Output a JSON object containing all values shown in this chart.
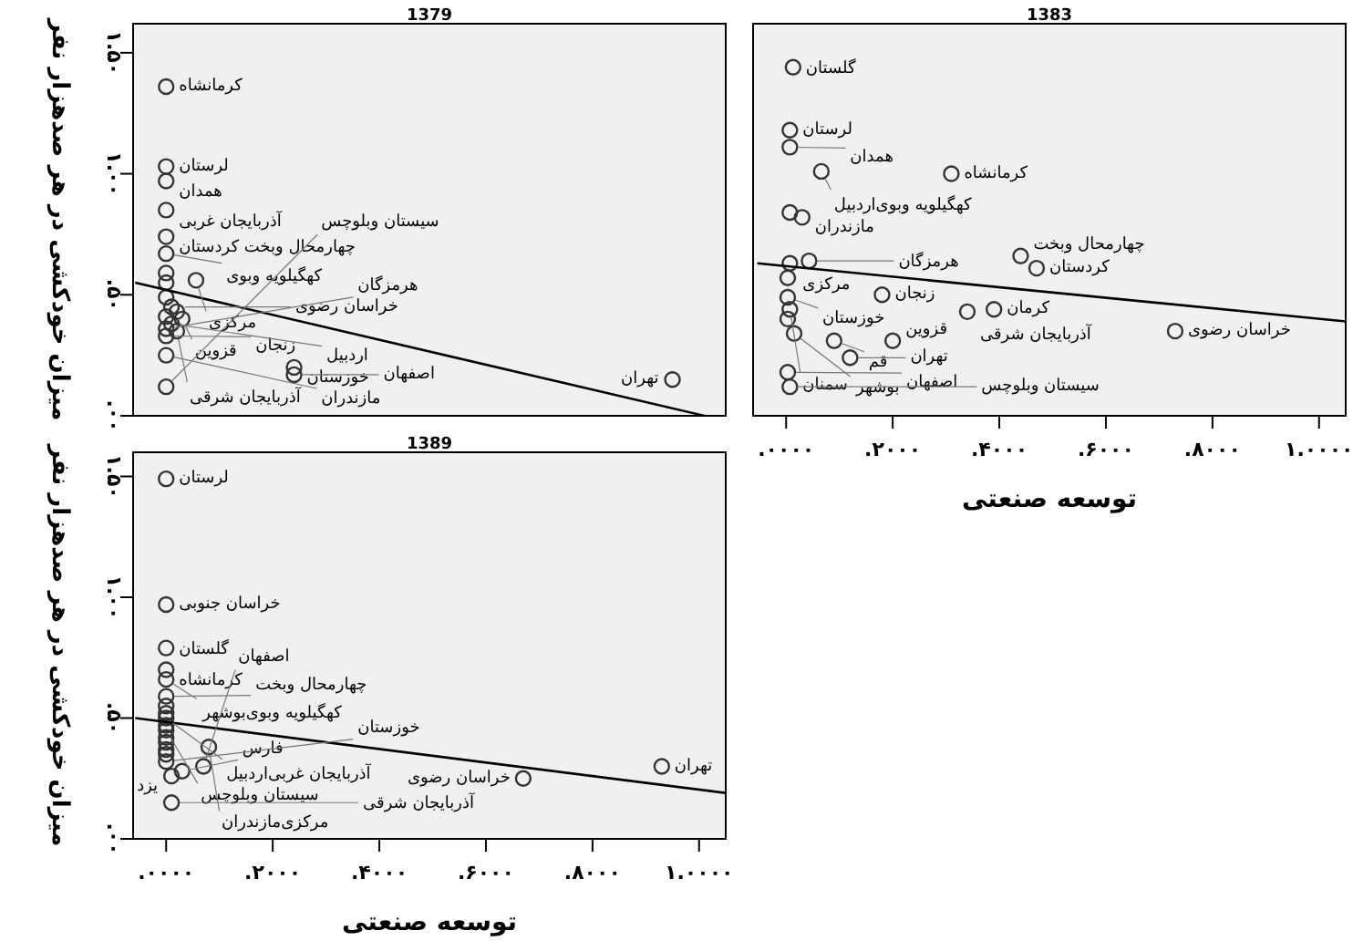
{
  "chart_data": [
    {
      "type": "scatter",
      "title": "1379",
      "ylabel": "میزان خودکشی در هر صدهزار نفر",
      "tick_labels": "y",
      "xlim": [
        -0.062,
        1.05
      ],
      "ylim": [
        0,
        1.62
      ],
      "yticks": [
        {
          "value": 0,
          "label": ".۰۰"
        },
        {
          "value": 0.5,
          "label": ".۵۰"
        },
        {
          "value": 1,
          "label": "۱.۰۰"
        },
        {
          "value": 1.5,
          "label": "۱.۵۰"
        }
      ],
      "series": [
        {
          "type": "scatter",
          "marker": "circle",
          "color": "#333333",
          "x": [
            0,
            0,
            0,
            0,
            0,
            0,
            0,
            0,
            0.056,
            0,
            0.01,
            0.02,
            0,
            0.03,
            0.01,
            0,
            0.02,
            0,
            0,
            0.24,
            0.24,
            0,
            0.95
          ],
          "values": [
            1.36,
            1.03,
            0.97,
            0.85,
            0.74,
            0.67,
            0.59,
            0.55,
            0.56,
            0.49,
            0.45,
            0.43,
            0.41,
            0.4,
            0.38,
            0.36,
            0.35,
            0.33,
            0.25,
            0.2,
            0.17,
            0.12,
            0.15
          ]
        },
        {
          "type": "line",
          "color": "#000000",
          "x": [
            -0.058,
            1.01
          ],
          "values": [
            0.55,
            0
          ]
        }
      ],
      "annotations": [
        {
          "text": "کرمانشاه",
          "x": 0,
          "y": 1.36
        },
        {
          "text": "لرستان",
          "x": 0,
          "y": 1.03
        },
        {
          "text": "همدان",
          "x": 0,
          "y": 0.97
        },
        {
          "text": "آذربایجان غربی",
          "x": 0,
          "y": 0.85
        },
        {
          "text": "چهارمحال وبخت کردستان",
          "x": 0,
          "y": 0.74
        },
        {
          "text": "کهگیلویه وبوی",
          "x": 0,
          "y": 0.67
        },
        {
          "text": "مرکزی",
          "x": 0.056,
          "y": 0.56
        },
        {
          "text": "خراسان رضوی",
          "x": 0.02,
          "y": 0.45
        },
        {
          "text": "قزوین",
          "x": 0.03,
          "y": 0.4
        },
        {
          "text": "آذربایجان شرقی",
          "x": 0.02,
          "y": 0.35
        },
        {
          "text": "زنجان",
          "x": 0,
          "y": 0.33
        },
        {
          "text": "اردبیل",
          "x": 0.01,
          "y": 0.38
        },
        {
          "text": "خوزستان",
          "x": 0.24,
          "y": 0.2
        },
        {
          "text": "هرمزگان",
          "x": 0,
          "y": 0.36
        },
        {
          "text": "مازندران",
          "x": 0,
          "y": 0.25
        },
        {
          "text": "اصفهان",
          "x": 0.24,
          "y": 0.17
        },
        {
          "text": "سیستان وبلوچس",
          "x": 0,
          "y": 0.12
        },
        {
          "text": "تهران",
          "x": 0.95,
          "y": 0.15
        }
      ]
    },
    {
      "type": "scatter",
      "title": "1383",
      "xlabel": "توسعه صنعتی",
      "tick_labels": "x",
      "xlim": [
        -0.062,
        1.05
      ],
      "ylim": [
        0,
        1.62
      ],
      "xticks": [
        {
          "value": 0,
          "label": ".۰۰۰۰"
        },
        {
          "value": 0.2,
          "label": ".۲۰۰۰"
        },
        {
          "value": 0.4,
          "label": ".۴۰۰۰"
        },
        {
          "value": 0.6,
          "label": ".۶۰۰۰"
        },
        {
          "value": 0.8,
          "label": ".۸۰۰۰"
        },
        {
          "value": 1,
          "label": "۱.۰۰۰۰"
        }
      ],
      "series": [
        {
          "type": "scatter",
          "marker": "circle",
          "color": "#333333",
          "x": [
            0.013,
            0.007,
            0.007,
            0.066,
            0.31,
            0.007,
            0.03,
            0.007,
            0.043,
            0.003,
            0.003,
            0.18,
            0.44,
            0.47,
            0.34,
            0.39,
            0.73,
            0.007,
            0.003,
            0.015,
            0.09,
            0.12,
            0.2,
            0.003,
            0.007
          ],
          "values": [
            1.44,
            1.18,
            1.11,
            1.01,
            1,
            0.84,
            0.82,
            0.63,
            0.64,
            0.57,
            0.49,
            0.5,
            0.66,
            0.61,
            0.43,
            0.44,
            0.35,
            0.44,
            0.4,
            0.34,
            0.31,
            0.24,
            0.31,
            0.18,
            0.12
          ]
        },
        {
          "type": "line",
          "color": "#000000",
          "x": [
            -0.054,
            1.05
          ],
          "values": [
            0.63,
            0.39
          ]
        }
      ],
      "annotations": [
        {
          "text": "گلستان",
          "x": 0.013,
          "y": 1.44
        },
        {
          "text": "لرستان",
          "x": 0.007,
          "y": 1.18
        },
        {
          "text": "همدان",
          "x": 0.007,
          "y": 1.11
        },
        {
          "text": "کهگیلویه وبوی‌اردبیل",
          "x": 0.066,
          "y": 1.01
        },
        {
          "text": "کرمانشاه",
          "x": 0.31,
          "y": 1
        },
        {
          "text": "مازندران",
          "x": 0.03,
          "y": 0.82
        },
        {
          "text": "مرکزی",
          "x": 0.007,
          "y": 0.63
        },
        {
          "text": "هرمزگان",
          "x": 0.043,
          "y": 0.64
        },
        {
          "text": "زنجان",
          "x": 0.18,
          "y": 0.5
        },
        {
          "text": "خوزستان",
          "x": 0.003,
          "y": 0.49
        },
        {
          "text": "چهارمحال وبخت",
          "x": 0.44,
          "y": 0.66
        },
        {
          "text": "کردستان",
          "x": 0.47,
          "y": 0.61
        },
        {
          "text": "آذربایجان شرقی",
          "x": 0.34,
          "y": 0.43
        },
        {
          "text": "کرمان",
          "x": 0.39,
          "y": 0.44
        },
        {
          "text": "خراسان رضوی",
          "x": 0.73,
          "y": 0.35
        },
        {
          "text": "سمنان",
          "x": 0.007,
          "y": 0.44
        },
        {
          "text": "قم",
          "x": 0.09,
          "y": 0.31
        },
        {
          "text": "تهران",
          "x": 0.12,
          "y": 0.24
        },
        {
          "text": "قزوین",
          "x": 0.2,
          "y": 0.31
        },
        {
          "text": "بوشهر",
          "x": 0.015,
          "y": 0.34
        },
        {
          "text": "اصفهان",
          "x": 0.003,
          "y": 0.18
        },
        {
          "text": "سیستان وبلوچس",
          "x": 0.007,
          "y": 0.12
        }
      ]
    },
    {
      "type": "scatter",
      "title": "1389",
      "xlabel": "توسعه صنعتی",
      "ylabel": "میزان خودکشی در هر صدهزار نفر",
      "xlim": [
        -0.062,
        1.05
      ],
      "ylim": [
        0,
        1.6
      ],
      "xticks": [
        {
          "value": 0,
          "label": ".۰۰۰۰"
        },
        {
          "value": 0.2,
          "label": ".۲۰۰۰"
        },
        {
          "value": 0.4,
          "label": ".۴۰۰۰"
        },
        {
          "value": 0.6,
          "label": ".۶۰۰۰"
        },
        {
          "value": 0.8,
          "label": ".۸۰۰۰"
        },
        {
          "value": 1,
          "label": "۱.۰۰۰۰"
        }
      ],
      "yticks": [
        {
          "value": 0,
          "label": ".۰۰"
        },
        {
          "value": 0.5,
          "label": ".۵۰"
        },
        {
          "value": 1,
          "label": "۱.۰۰"
        },
        {
          "value": 1.5,
          "label": "۱.۵۰"
        }
      ],
      "series": [
        {
          "type": "scatter",
          "marker": "circle",
          "color": "#333333",
          "x": [
            0,
            0,
            0,
            0,
            0,
            0,
            0,
            0,
            0,
            0,
            0,
            0,
            0,
            0,
            0,
            0.08,
            0.07,
            0.03,
            0.01,
            0,
            0.01,
            0.67,
            0.93
          ],
          "values": [
            1.49,
            0.97,
            0.79,
            0.7,
            0.66,
            0.59,
            0.55,
            0.52,
            0.5,
            0.47,
            0.45,
            0.42,
            0.4,
            0.37,
            0.35,
            0.38,
            0.3,
            0.28,
            0.26,
            0.32,
            0.15,
            0.25,
            0.3
          ]
        },
        {
          "type": "line",
          "color": "#000000",
          "x": [
            -0.058,
            1.05
          ],
          "values": [
            0.5,
            0.19
          ]
        }
      ],
      "annotations": [
        {
          "text": "لرستان",
          "x": 0,
          "y": 1.49
        },
        {
          "text": "خراسان جنوبی",
          "x": 0,
          "y": 0.97
        },
        {
          "text": "گلستان",
          "x": 0,
          "y": 0.79
        },
        {
          "text": "کرمانشاه",
          "x": 0,
          "y": 0.7
        },
        {
          "text": "کهگیلویه وبوی‌بوشهر",
          "x": 0,
          "y": 0.66
        },
        {
          "text": "چهارمحال وبخت",
          "x": 0,
          "y": 0.59
        },
        {
          "text": "آذربایجان غربی‌اردبیل",
          "x": 0,
          "y": 0.5
        },
        {
          "text": "سیستان وبلوچس",
          "x": 0,
          "y": 0.45
        },
        {
          "text": "مرکزی‌مازندران",
          "x": 0.08,
          "y": 0.38
        },
        {
          "text": "اصفهان",
          "x": 0.07,
          "y": 0.3
        },
        {
          "text": "فارس",
          "x": 0.03,
          "y": 0.28
        },
        {
          "text": "یزد",
          "x": 0.01,
          "y": 0.26
        },
        {
          "text": "خوزستان",
          "x": 0,
          "y": 0.32
        },
        {
          "text": "آذربایجان شرقی",
          "x": 0.01,
          "y": 0.15
        },
        {
          "text": "خراسان رضوی",
          "x": 0.67,
          "y": 0.25
        },
        {
          "text": "تهران",
          "x": 0.93,
          "y": 0.3
        }
      ]
    }
  ]
}
